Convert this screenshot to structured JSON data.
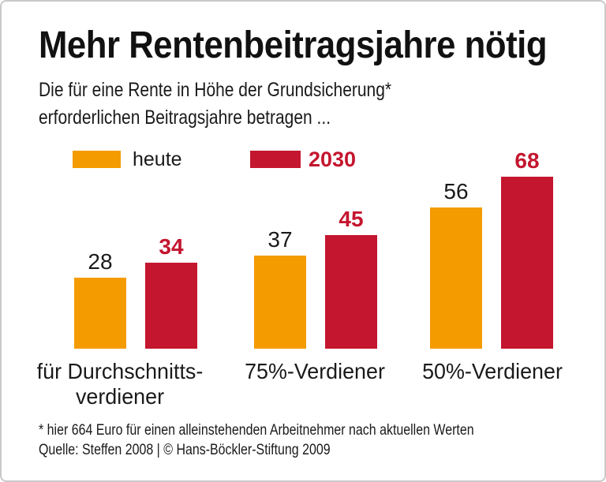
{
  "frame": {
    "background": "#ffffff",
    "border_color": "#c9c9c9"
  },
  "header": {
    "title": "Mehr Rentenbeitragsjahre nötig",
    "subtitle_line1": "Die für eine Rente in Höhe der Grundsicherung*",
    "subtitle_line2": "erforderlichen Beitragsjahre betragen ..."
  },
  "legend": {
    "position": "top-left",
    "items": [
      {
        "label": "heute",
        "color": "#F49B00",
        "label_color": "#1a1a1a",
        "bold": false
      },
      {
        "label": "2030",
        "color": "#C4162F",
        "label_color": "#C4162F",
        "bold": true
      }
    ]
  },
  "chart_data": {
    "type": "bar",
    "categories": [
      "für Durchschnitts-\nverdiener",
      "75%-Verdiener",
      "50%-Verdiener"
    ],
    "series": [
      {
        "name": "heute",
        "color": "#F49B00",
        "values": [
          28,
          37,
          56
        ],
        "value_label_color": "#1a1a1a",
        "value_label_bold": false
      },
      {
        "name": "2030",
        "color": "#C4162F",
        "values": [
          34,
          45,
          68
        ],
        "value_label_color": "#C4162F",
        "value_label_bold": true
      }
    ],
    "title": "Mehr Rentenbeitragsjahre nötig",
    "xlabel": "",
    "ylabel": "",
    "ylim": [
      0,
      70
    ],
    "gridlines": false,
    "axes_shown": false,
    "value_labels_shown": true,
    "legend_position": "top-left"
  },
  "footer": {
    "footnote": "* hier 664 Euro für einen alleinstehenden Arbeitnehmer nach aktuellen Werten",
    "source": "Quelle: Steffen 2008 | © Hans-Böckler-Stiftung 2009"
  }
}
